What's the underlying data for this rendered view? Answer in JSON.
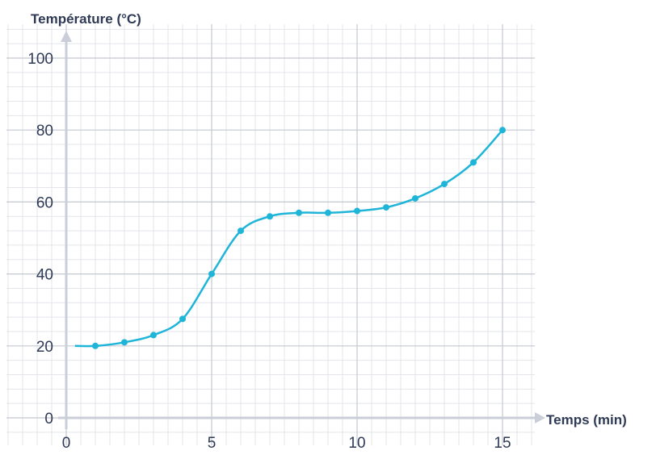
{
  "chart_data": {
    "type": "line",
    "ylabel": "Température (°C)",
    "xlabel": "Temps (min)",
    "xlim": [
      0,
      16.5
    ],
    "ylim": [
      0,
      100
    ],
    "x_ticks": [
      "0",
      "5",
      "10",
      "15"
    ],
    "y_ticks": [
      "0",
      "20",
      "40",
      "60",
      "80",
      "100"
    ],
    "grid": true,
    "series": [
      {
        "x": [
          1,
          2,
          3,
          4,
          5,
          6,
          7,
          8,
          9,
          10,
          11,
          12,
          13,
          14,
          15
        ],
        "values": [
          20,
          21,
          23,
          27.5,
          40,
          52,
          56,
          57,
          57,
          57.5,
          58.5,
          61,
          65,
          71,
          80
        ]
      }
    ],
    "curve_start": [
      0.3,
      20
    ],
    "color": "#1fb5d8"
  }
}
